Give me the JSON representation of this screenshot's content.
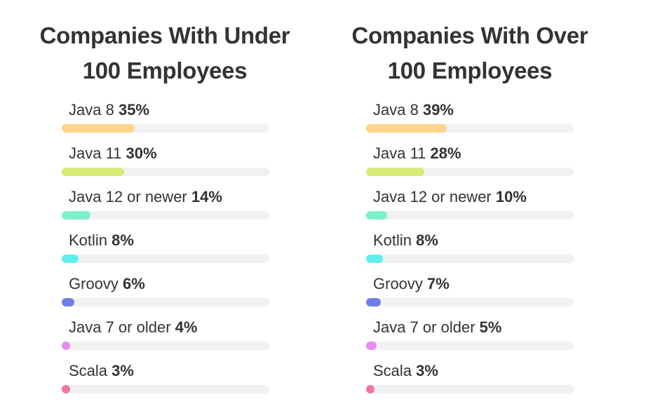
{
  "chart_data": [
    {
      "type": "bar",
      "orientation": "horizontal",
      "title_line1": "Companies With Under",
      "title_line2": "100 Employees",
      "categories": [
        "Java 8",
        "Java 11",
        "Java 12 or newer",
        "Kotlin",
        "Groovy",
        "Java 7 or older",
        "Scala"
      ],
      "values": [
        35,
        30,
        14,
        8,
        6,
        4,
        3
      ],
      "value_labels": [
        "35%",
        "30%",
        "14%",
        "8%",
        "6%",
        "4%",
        "3%"
      ],
      "colors": [
        "#fdd58b",
        "#d9ea78",
        "#7ef0c8",
        "#5feef0",
        "#6f7ee8",
        "#e78cf2",
        "#f4729f"
      ],
      "xlim": [
        0,
        100
      ],
      "grid": false,
      "legend": "none"
    },
    {
      "type": "bar",
      "orientation": "horizontal",
      "title_line1": "Companies With Over",
      "title_line2": "100 Employees",
      "categories": [
        "Java 8",
        "Java 11",
        "Java 12 or newer",
        "Kotlin",
        "Groovy",
        "Java 7 or older",
        "Scala"
      ],
      "values": [
        39,
        28,
        10,
        8,
        7,
        5,
        3
      ],
      "value_labels": [
        "39%",
        "28%",
        "10%",
        "8%",
        "7%",
        "5%",
        "3%"
      ],
      "colors": [
        "#fdd58b",
        "#d9ea78",
        "#7ef0c8",
        "#5feef0",
        "#6f7ee8",
        "#e78cf2",
        "#f4729f"
      ],
      "xlim": [
        0,
        100
      ],
      "grid": false,
      "legend": "none"
    }
  ]
}
